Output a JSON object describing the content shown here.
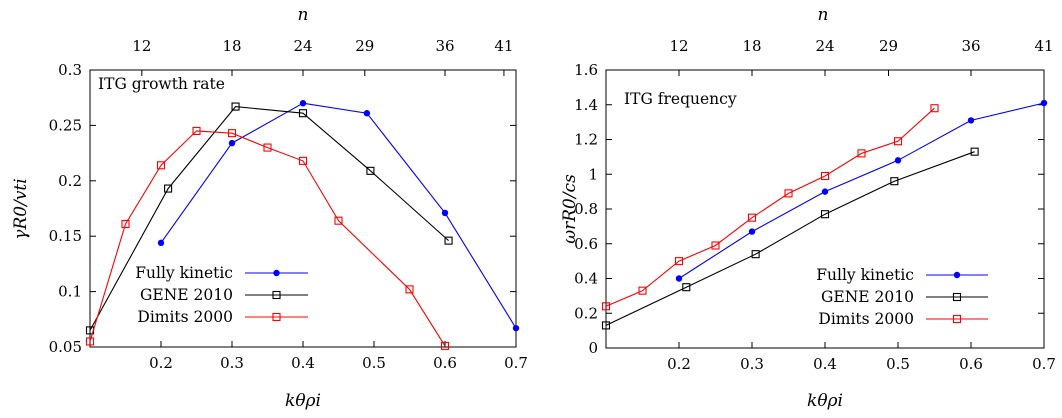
{
  "chart_data": [
    {
      "type": "line",
      "title": "ITG growth rate",
      "xlabel": "kθρi",
      "ylabel": "γR0/vti",
      "top_axis_label": "n",
      "xlim": [
        0.1,
        0.7
      ],
      "ylim": [
        0.05,
        0.3
      ],
      "x_ticks": [
        0.2,
        0.3,
        0.4,
        0.5,
        0.6,
        0.7
      ],
      "y_ticks": [
        0.05,
        0.1,
        0.15,
        0.2,
        0.25,
        0.3
      ],
      "top_ticks": [
        {
          "label": "12",
          "x": 0.173
        },
        {
          "label": "18",
          "x": 0.3
        },
        {
          "label": "24",
          "x": 0.4
        },
        {
          "label": "29",
          "x": 0.487
        },
        {
          "label": "36",
          "x": 0.6
        },
        {
          "label": "41",
          "x": 0.683
        }
      ],
      "legend_position": "bottom-left",
      "grid": false,
      "series": [
        {
          "name": "Fully kinetic",
          "color": "#0000ff",
          "marker": "filled-circle",
          "x": [
            0.2,
            0.3,
            0.4,
            0.49,
            0.6,
            0.7
          ],
          "y": [
            0.144,
            0.234,
            0.27,
            0.261,
            0.171,
            0.067
          ]
        },
        {
          "name": "GENE 2010",
          "color": "#000000",
          "marker": "open-square",
          "x": [
            0.1,
            0.21,
            0.305,
            0.4,
            0.495,
            0.605
          ],
          "y": [
            0.065,
            0.193,
            0.267,
            0.261,
            0.209,
            0.146
          ]
        },
        {
          "name": "Dimits 2000",
          "color": "#ff0000",
          "marker": "open-square",
          "x": [
            0.1,
            0.15,
            0.2,
            0.25,
            0.3,
            0.35,
            0.4,
            0.45,
            0.55,
            0.6
          ],
          "y": [
            0.055,
            0.161,
            0.214,
            0.245,
            0.243,
            0.23,
            0.218,
            0.164,
            0.102,
            0.051
          ]
        }
      ]
    },
    {
      "type": "line",
      "title": "ITG frequency",
      "xlabel": "kθρi",
      "ylabel": "ωrR0/cs",
      "top_axis_label": "n",
      "xlim": [
        0.1,
        0.7
      ],
      "ylim": [
        0,
        1.6
      ],
      "x_ticks": [
        0.2,
        0.3,
        0.4,
        0.5,
        0.6,
        0.7
      ],
      "y_ticks": [
        0,
        0.2,
        0.4,
        0.6,
        0.8,
        1,
        1.2,
        1.4,
        1.6
      ],
      "top_ticks": [
        {
          "label": "12",
          "x": 0.2
        },
        {
          "label": "18",
          "x": 0.3
        },
        {
          "label": "24",
          "x": 0.4
        },
        {
          "label": "29",
          "x": 0.487
        },
        {
          "label": "36",
          "x": 0.6
        },
        {
          "label": "41",
          "x": 0.7
        }
      ],
      "legend_position": "bottom-right",
      "grid": false,
      "series": [
        {
          "name": "Fully kinetic",
          "color": "#0000ff",
          "marker": "filled-circle",
          "x": [
            0.2,
            0.3,
            0.4,
            0.5,
            0.6,
            0.7
          ],
          "y": [
            0.4,
            0.67,
            0.9,
            1.08,
            1.31,
            1.41
          ]
        },
        {
          "name": "GENE 2010",
          "color": "#000000",
          "marker": "open-square",
          "x": [
            0.1,
            0.21,
            0.305,
            0.4,
            0.495,
            0.605
          ],
          "y": [
            0.13,
            0.35,
            0.54,
            0.77,
            0.96,
            1.13
          ]
        },
        {
          "name": "Dimits 2000",
          "color": "#ff0000",
          "marker": "open-square",
          "x": [
            0.1,
            0.15,
            0.2,
            0.25,
            0.3,
            0.35,
            0.4,
            0.45,
            0.5,
            0.55
          ],
          "y": [
            0.24,
            0.33,
            0.5,
            0.59,
            0.75,
            0.89,
            0.99,
            1.12,
            1.19,
            1.38
          ]
        }
      ]
    }
  ]
}
